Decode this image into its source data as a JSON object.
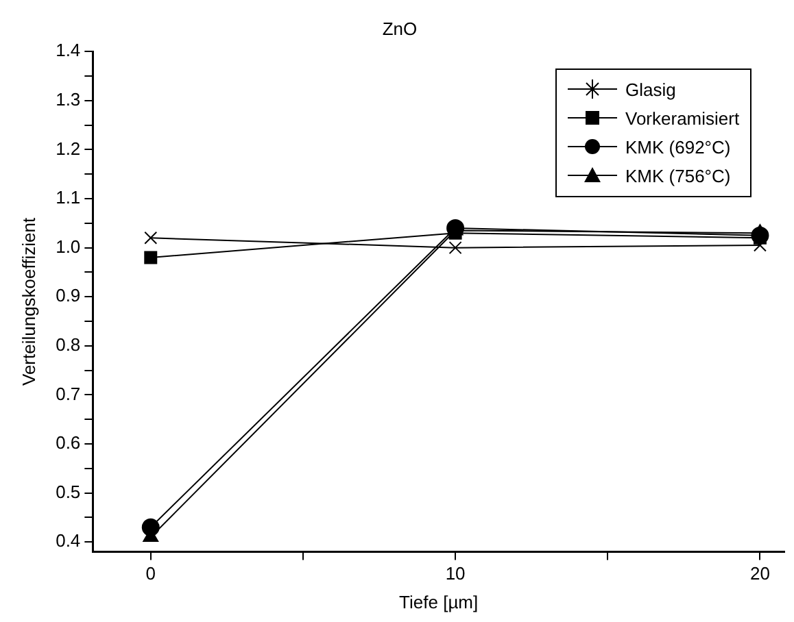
{
  "chart_data": {
    "type": "line",
    "title": "ZnO",
    "xlabel": "Tiefe [µm]",
    "ylabel": "Verteilungskoeffizient",
    "x": [
      0,
      10,
      20
    ],
    "series": [
      {
        "name": "Glasig",
        "color": "#000000",
        "marker": "cross",
        "values": [
          1.02,
          1.0,
          1.005
        ]
      },
      {
        "name": "Vorkeramisiert",
        "color": "#000000",
        "marker": "square",
        "values": [
          0.98,
          1.03,
          1.02
        ]
      },
      {
        "name": "KMK (692°C)",
        "color": "#000000",
        "marker": "circle",
        "values": [
          0.43,
          1.04,
          1.025
        ]
      },
      {
        "name": "KMK (756°C)",
        "color": "#000000",
        "marker": "triangle",
        "values": [
          0.41,
          1.035,
          1.03
        ]
      }
    ],
    "xlim": [
      -1.9,
      20.8
    ],
    "xticks": [
      0,
      {
        "value": 5,
        "label": null
      },
      10,
      {
        "value": 15,
        "label": null
      },
      20
    ],
    "ylim": [
      0.38,
      1.4
    ],
    "yticks": [
      0.4,
      {
        "value": 0.45,
        "label": null
      },
      0.5,
      {
        "value": 0.55,
        "label": null
      },
      0.6,
      {
        "value": 0.65,
        "label": null
      },
      0.7,
      {
        "value": 0.75,
        "label": null
      },
      0.8,
      {
        "value": 0.85,
        "label": null
      },
      0.9,
      {
        "value": 0.95,
        "label": null
      },
      {
        "value": 1.0,
        "label": "1.0"
      },
      {
        "value": 1.05,
        "label": null
      },
      1.1,
      {
        "value": 1.15,
        "label": null
      },
      1.2,
      {
        "value": 1.25,
        "label": null
      },
      1.3,
      {
        "value": 1.35,
        "label": null
      },
      1.4
    ],
    "grid": false,
    "legend": "top right",
    "line_style": "solid"
  }
}
